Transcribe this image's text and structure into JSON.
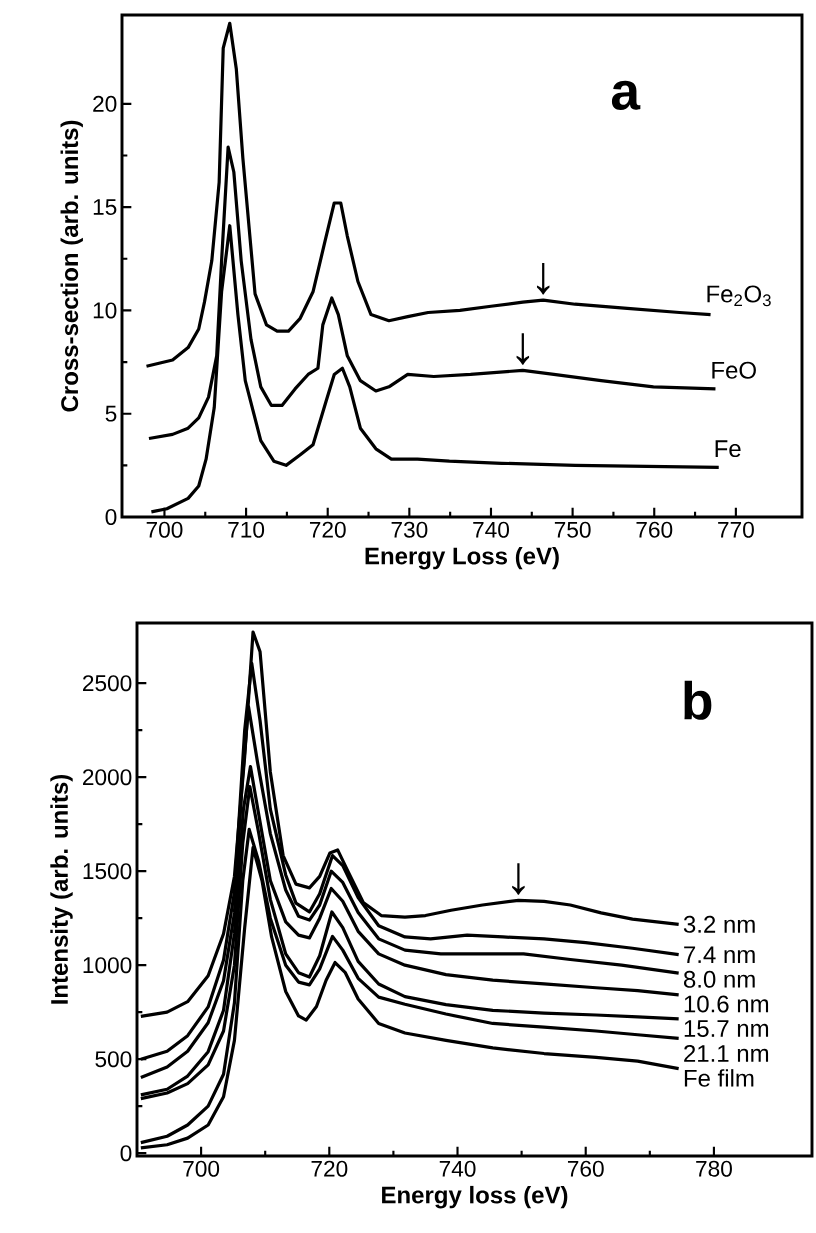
{
  "chart_data": [
    {
      "type": "line",
      "xlabel": "Energy Loss (eV)",
      "ylabel": "Cross-section (arb. units)",
      "xlim": [
        694.8,
        778.1
      ],
      "ylim": [
        0,
        24.3
      ],
      "xticks": [
        700,
        710,
        720,
        730,
        740,
        750,
        760,
        770
      ],
      "yticks": [
        0,
        5,
        10,
        15,
        20
      ],
      "annotations": [
        "a",
        {
          "text": "↓",
          "x": 746.4,
          "y": 10.5
        },
        {
          "text": "↓",
          "x": 743.9,
          "y": 7.1
        }
      ],
      "series": [
        {
          "name": "Fe$_{2}$O$_{3}$",
          "color": "#000000",
          "x": [
            697.8,
            701.0,
            702.9,
            704.2,
            704.9,
            705.8,
            706.7,
            707.2,
            708.0,
            708.8,
            709.6,
            711.1,
            712.5,
            713.8,
            715.2,
            716.6,
            718.2,
            719.7,
            720.8,
            721.6,
            722.4,
            723.7,
            725.3,
            727.5,
            729.8,
            732.3,
            736.2,
            740.0,
            743.9,
            746.4,
            750.3,
            756.7,
            763.1,
            766.9
          ],
          "values": [
            7.3,
            7.6,
            8.2,
            9.1,
            10.4,
            12.4,
            16.2,
            22.7,
            23.9,
            21.7,
            17.4,
            10.8,
            9.3,
            9.0,
            9.0,
            9.6,
            10.9,
            13.4,
            15.2,
            15.2,
            13.6,
            11.4,
            9.8,
            9.5,
            9.7,
            9.9,
            10.0,
            10.2,
            10.4,
            10.5,
            10.3,
            10.1,
            9.9,
            9.8
          ]
        },
        {
          "name": "FeO",
          "color": "#000000",
          "x": [
            698.1,
            701.0,
            702.9,
            704.2,
            705.4,
            706.4,
            707.0,
            707.8,
            708.5,
            709.4,
            710.6,
            711.8,
            713.1,
            714.4,
            716.0,
            717.6,
            718.8,
            719.4,
            720.5,
            721.3,
            722.4,
            724.0,
            725.9,
            727.5,
            729.8,
            733.0,
            737.5,
            743.9,
            747.7,
            753.5,
            759.9,
            767.5
          ],
          "values": [
            3.8,
            4.0,
            4.3,
            4.8,
            5.8,
            7.8,
            12.4,
            17.9,
            16.7,
            12.4,
            8.6,
            6.3,
            5.4,
            5.4,
            6.2,
            6.9,
            7.2,
            9.3,
            10.6,
            9.8,
            7.8,
            6.6,
            6.1,
            6.3,
            6.9,
            6.8,
            6.9,
            7.1,
            6.9,
            6.6,
            6.3,
            6.2
          ]
        },
        {
          "name": "Fe",
          "color": "#000000",
          "x": [
            698.4,
            700.3,
            702.9,
            704.2,
            705.1,
            706.1,
            707.0,
            708.0,
            709.0,
            709.9,
            711.8,
            713.4,
            714.9,
            716.6,
            718.2,
            719.8,
            720.8,
            721.8,
            722.7,
            724.0,
            725.9,
            727.8,
            731.0,
            734.9,
            741.3,
            750.3,
            767.9
          ],
          "values": [
            0.25,
            0.4,
            0.9,
            1.5,
            2.8,
            5.3,
            10.9,
            14.1,
            9.8,
            6.6,
            3.7,
            2.7,
            2.5,
            3.0,
            3.5,
            5.6,
            6.9,
            7.2,
            6.3,
            4.3,
            3.3,
            2.8,
            2.8,
            2.7,
            2.6,
            2.5,
            2.4
          ]
        }
      ]
    },
    {
      "type": "line",
      "xlabel": "Energy loss (eV)",
      "ylabel": "Intensity (arb. units)",
      "xlim": [
        690,
        795.3
      ],
      "ylim": [
        -15,
        2820
      ],
      "xticks": [
        700,
        720,
        740,
        760,
        780
      ],
      "yticks": [
        0,
        500,
        1000,
        1500,
        2000,
        2500
      ],
      "annotations": [
        "b",
        {
          "text": "↓",
          "x": 749.5,
          "y": 1345
        }
      ],
      "series": [
        {
          "name": "3.2 nm",
          "color": "#000000",
          "x": [
            690.6,
            694.7,
            697.9,
            701.1,
            703.5,
            705.2,
            706.8,
            708.1,
            709.2,
            710.8,
            712.8,
            714.8,
            716.9,
            718.5,
            720.1,
            721.3,
            722.9,
            725.3,
            728.1,
            731.8,
            735.0,
            739.0,
            743.9,
            749.5,
            753.5,
            757.6,
            762.4,
            767.3,
            774.5
          ],
          "values": [
            728,
            750,
            806,
            944,
            1167,
            1472,
            2111,
            2772,
            2667,
            2028,
            1583,
            1431,
            1411,
            1472,
            1597,
            1613,
            1500,
            1333,
            1264,
            1256,
            1264,
            1292,
            1320,
            1345,
            1339,
            1320,
            1278,
            1245,
            1217
          ]
        },
        {
          "name": "7.4 nm",
          "color": "#000000",
          "x": [
            690.6,
            694.7,
            697.9,
            701.1,
            703.5,
            705.2,
            706.8,
            707.9,
            709.2,
            710.8,
            713.2,
            714.8,
            716.9,
            718.5,
            720.5,
            722.1,
            724.5,
            727.7,
            731.8,
            735.8,
            741.5,
            747.1,
            753.5,
            760.0,
            767.3,
            774.5
          ],
          "values": [
            500,
            542,
            625,
            778,
            1028,
            1389,
            2250,
            2606,
            2300,
            1830,
            1480,
            1330,
            1283,
            1380,
            1583,
            1530,
            1360,
            1210,
            1150,
            1140,
            1160,
            1150,
            1140,
            1120,
            1090,
            1056
          ]
        },
        {
          "name": "8.0 nm",
          "color": "#000000",
          "x": [
            690.6,
            694.7,
            697.9,
            701.1,
            703.5,
            705.2,
            706.4,
            707.4,
            708.8,
            710.8,
            713.2,
            715.2,
            716.9,
            718.5,
            720.3,
            722.1,
            724.5,
            727.7,
            731.8,
            737.4,
            743.9,
            750.3,
            757.6,
            765.6,
            774.5
          ],
          "values": [
            403,
            458,
            542,
            694,
            917,
            1278,
            1972,
            2375,
            2080,
            1700,
            1400,
            1260,
            1240,
            1320,
            1500,
            1440,
            1280,
            1140,
            1080,
            1060,
            1060,
            1060,
            1030,
            1000,
            958
          ]
        },
        {
          "name": "10.6 nm",
          "color": "#000000",
          "x": [
            690.6,
            694.7,
            697.9,
            701.1,
            703.5,
            705.2,
            706.6,
            707.7,
            709.0,
            710.8,
            713.2,
            715.2,
            716.9,
            718.5,
            720.3,
            722.1,
            724.5,
            727.7,
            731.8,
            738.2,
            745.5,
            753.5,
            761.6,
            768.1,
            774.5
          ],
          "values": [
            310,
            340,
            410,
            540,
            760,
            1170,
            1830,
            2056,
            1800,
            1450,
            1230,
            1160,
            1145,
            1250,
            1408,
            1340,
            1180,
            1060,
            1000,
            950,
            920,
            900,
            880,
            865,
            842
          ]
        },
        {
          "name": "15.7 nm",
          "color": "#000000",
          "x": [
            690.6,
            694.7,
            697.9,
            701.1,
            703.5,
            705.2,
            706.5,
            707.6,
            709.0,
            710.8,
            713.2,
            715.2,
            716.9,
            718.5,
            720.4,
            722.1,
            724.5,
            727.7,
            731.8,
            738.2,
            745.5,
            753.5,
            761.6,
            768.1,
            774.5
          ],
          "values": [
            290,
            320,
            370,
            470,
            650,
            1000,
            1650,
            1950,
            1700,
            1350,
            1060,
            960,
            937,
            1050,
            1283,
            1200,
            1020,
            900,
            833,
            790,
            760,
            745,
            735,
            725,
            714
          ]
        },
        {
          "name": "21.1 nm",
          "color": "#000000",
          "x": [
            690.6,
            694.7,
            697.9,
            701.1,
            703.5,
            705.2,
            706.5,
            707.5,
            709.0,
            710.8,
            713.2,
            715.2,
            716.9,
            718.5,
            720.5,
            722.1,
            724.5,
            727.7,
            731.8,
            738.2,
            745.5,
            753.5,
            761.6,
            768.1,
            774.5
          ],
          "values": [
            56,
            90,
            150,
            250,
            420,
            800,
            1450,
            1722,
            1550,
            1250,
            1000,
            910,
            895,
            980,
            1153,
            1080,
            930,
            830,
            792,
            740,
            690,
            670,
            650,
            630,
            611
          ]
        },
        {
          "name": "Fe film",
          "color": "#000000",
          "x": [
            690.6,
            694.7,
            697.9,
            701.1,
            703.5,
            705.2,
            706.8,
            708.1,
            709.5,
            711.0,
            713.2,
            715.2,
            716.4,
            718.0,
            719.5,
            720.9,
            722.5,
            724.5,
            727.7,
            731.8,
            738.2,
            745.5,
            753.5,
            761.6,
            768.1,
            774.5
          ],
          "values": [
            28,
            45,
            80,
            150,
            300,
            600,
            1200,
            1625,
            1450,
            1150,
            860,
            730,
            708,
            780,
            920,
            1014,
            960,
            820,
            690,
            639,
            600,
            560,
            530,
            510,
            490,
            450
          ]
        }
      ]
    }
  ]
}
